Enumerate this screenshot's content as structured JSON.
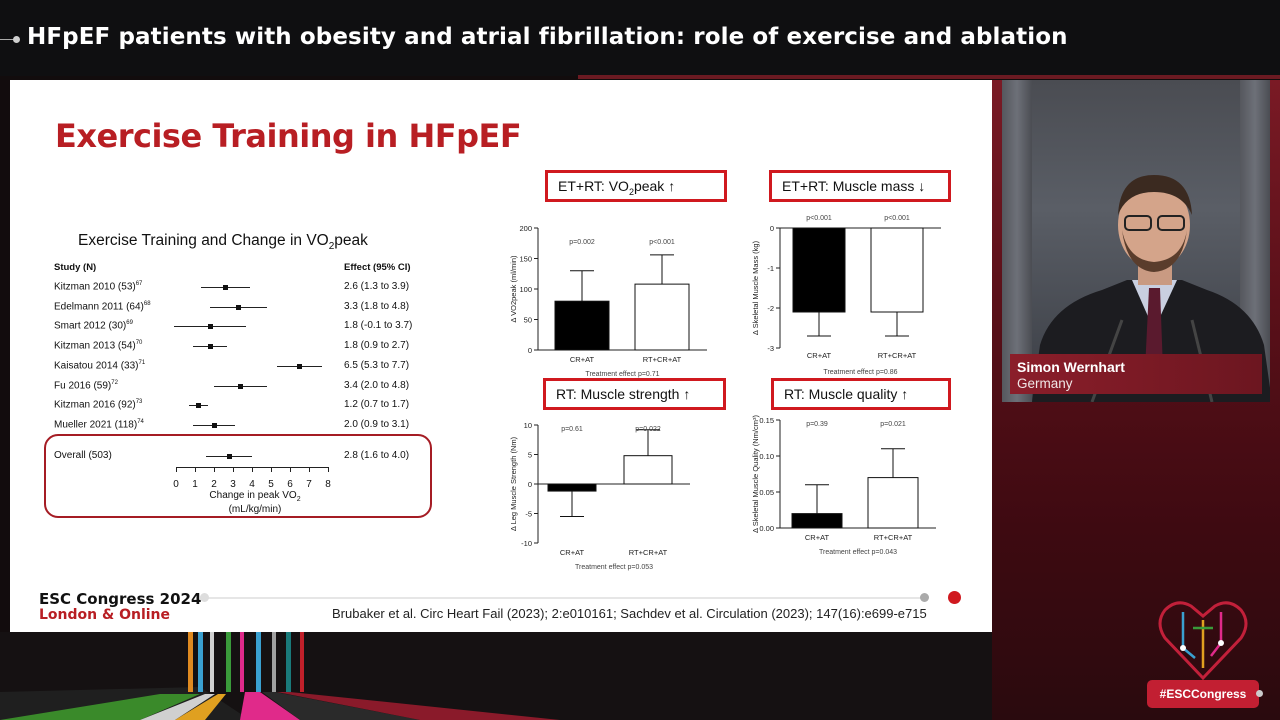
{
  "banner": {
    "title": "HFpEF patients with obesity and atrial fibrillation: role of exercise and ablation"
  },
  "speaker": {
    "name": "Simon Wernhart",
    "country": "Germany"
  },
  "hashtag": "#ESCCongress",
  "slide": {
    "title": "Exercise Training in HFpEF",
    "forest": {
      "title_main": "Exercise Training and Change in VO",
      "title_sub": "2",
      "title_tail": "peak",
      "col_study": "Study (N)",
      "col_effect": "Effect (95% CI)",
      "studies": [
        {
          "label": "Kitzman 2010  (53)",
          "ref": "67",
          "effect": "2.6 (1.3 to 3.9)",
          "est": 2.6,
          "lo": 1.3,
          "hi": 3.9
        },
        {
          "label": "Edelmann 2011 (64)",
          "ref": "68",
          "effect": "3.3 (1.8 to 4.8)",
          "est": 3.3,
          "lo": 1.8,
          "hi": 4.8
        },
        {
          "label": "Smart 2012  (30)",
          "ref": "69",
          "effect": "1.8 (-0.1 to 3.7)",
          "est": 1.8,
          "lo": -0.1,
          "hi": 3.7
        },
        {
          "label": "Kitzman 2013  (54)",
          "ref": "70",
          "effect": "1.8 (0.9 to 2.7)",
          "est": 1.8,
          "lo": 0.9,
          "hi": 2.7
        },
        {
          "label": "Kaisatou 2014  (33)",
          "ref": "71",
          "effect": "6.5 (5.3 to 7.7)",
          "est": 6.5,
          "lo": 5.3,
          "hi": 7.7
        },
        {
          "label": "Fu 2016  (59)",
          "ref": "72",
          "effect": "3.4 (2.0 to 4.8)",
          "est": 3.4,
          "lo": 2.0,
          "hi": 4.8
        },
        {
          "label": "Kitzman 2016  (92)",
          "ref": "73",
          "effect": "1.2 (0.7 to 1.7)",
          "est": 1.2,
          "lo": 0.7,
          "hi": 1.7
        },
        {
          "label": "Mueller 2021 (118)",
          "ref": "74",
          "effect": "2.0 (0.9 to 3.1)",
          "est": 2.0,
          "lo": 0.9,
          "hi": 3.1
        }
      ],
      "overall": {
        "label": "Overall (503)",
        "effect": "2.8 (1.6 to 4.0)",
        "est": 2.8,
        "lo": 1.6,
        "hi": 4.0
      },
      "ticks": [
        "0",
        "1",
        "2",
        "3",
        "4",
        "5",
        "6",
        "7",
        "8"
      ],
      "xlabel_1": "Change in peak VO",
      "xlabel_1_sub": "2",
      "xlabel_2": "(mL/kg/min)"
    },
    "headers": {
      "vo2": {
        "pre": "ET+RT: VO",
        "sub": "2",
        "post": "peak ↑"
      },
      "mass": "ET+RT: Muscle mass ↓",
      "strength": "RT: Muscle strength ↑",
      "quality": "RT: Muscle quality ↑"
    },
    "footer": {
      "congress": "ESC Congress 2024",
      "location": "London & Online",
      "reference": "Brubaker et al. Circ Heart Fail (2023); 2:e010161; Sachdev et al. Circulation (2023); 147(16):e699-e715"
    }
  },
  "chart_data": [
    {
      "type": "bar",
      "title": "ET+RT: VO2peak ↑",
      "ylabel": "Δ VO2peak (ml/min)",
      "categories": [
        "CR+AT",
        "RT+CR+AT"
      ],
      "values": [
        80,
        108
      ],
      "errors": [
        50,
        48
      ],
      "pvalues": [
        "p=0.002",
        "p<0.001"
      ],
      "ylim": [
        0,
        200
      ],
      "yticks": [
        "0",
        "50",
        "100",
        "150",
        "200"
      ],
      "footnote": "Treatment effect p=0.71",
      "fills": [
        "#000000",
        "#ffffff"
      ]
    },
    {
      "type": "bar",
      "title": "ET+RT: Muscle mass ↓",
      "ylabel": "Δ Skeletal Muscle Mass (kg)",
      "categories": [
        "CR+AT",
        "RT+CR+AT"
      ],
      "values": [
        -2.1,
        -2.1
      ],
      "errors": [
        0.6,
        0.6
      ],
      "pvalues": [
        "p<0.001",
        "p<0.001"
      ],
      "ylim": [
        -3,
        0
      ],
      "yticks": [
        "0",
        "-1",
        "-2",
        "-3"
      ],
      "footnote": "Treatment effect p=0.86",
      "fills": [
        "#000000",
        "#ffffff"
      ]
    },
    {
      "type": "bar",
      "title": "RT: Muscle strength ↑",
      "ylabel": "Δ Leg Muscle Strength (Nm)",
      "categories": [
        "CR+AT",
        "RT+CR+AT"
      ],
      "values": [
        -1.2,
        4.8
      ],
      "errors": [
        4.3,
        4.4
      ],
      "pvalues": [
        "p=0.61",
        "p=0.022"
      ],
      "ylim": [
        -10,
        10
      ],
      "yticks": [
        "10",
        "5",
        "0",
        "-5",
        "-10"
      ],
      "footnote": "Treatment effect p=0.053",
      "fills": [
        "#000000",
        "#ffffff"
      ]
    },
    {
      "type": "bar",
      "title": "RT: Muscle quality ↑",
      "ylabel": "Δ Skeletal Muscle Quality (Nm/cm³)",
      "categories": [
        "CR+AT",
        "RT+CR+AT"
      ],
      "values": [
        0.02,
        0.07
      ],
      "errors": [
        0.04,
        0.04
      ],
      "pvalues": [
        "p=0.39",
        "p=0.021"
      ],
      "ylim": [
        0,
        0.15
      ],
      "yticks": [
        "0.15",
        "0.10",
        "0.05",
        "0.00"
      ],
      "footnote": "Treatment effect p=0.043",
      "fills": [
        "#000000",
        "#ffffff"
      ]
    }
  ]
}
